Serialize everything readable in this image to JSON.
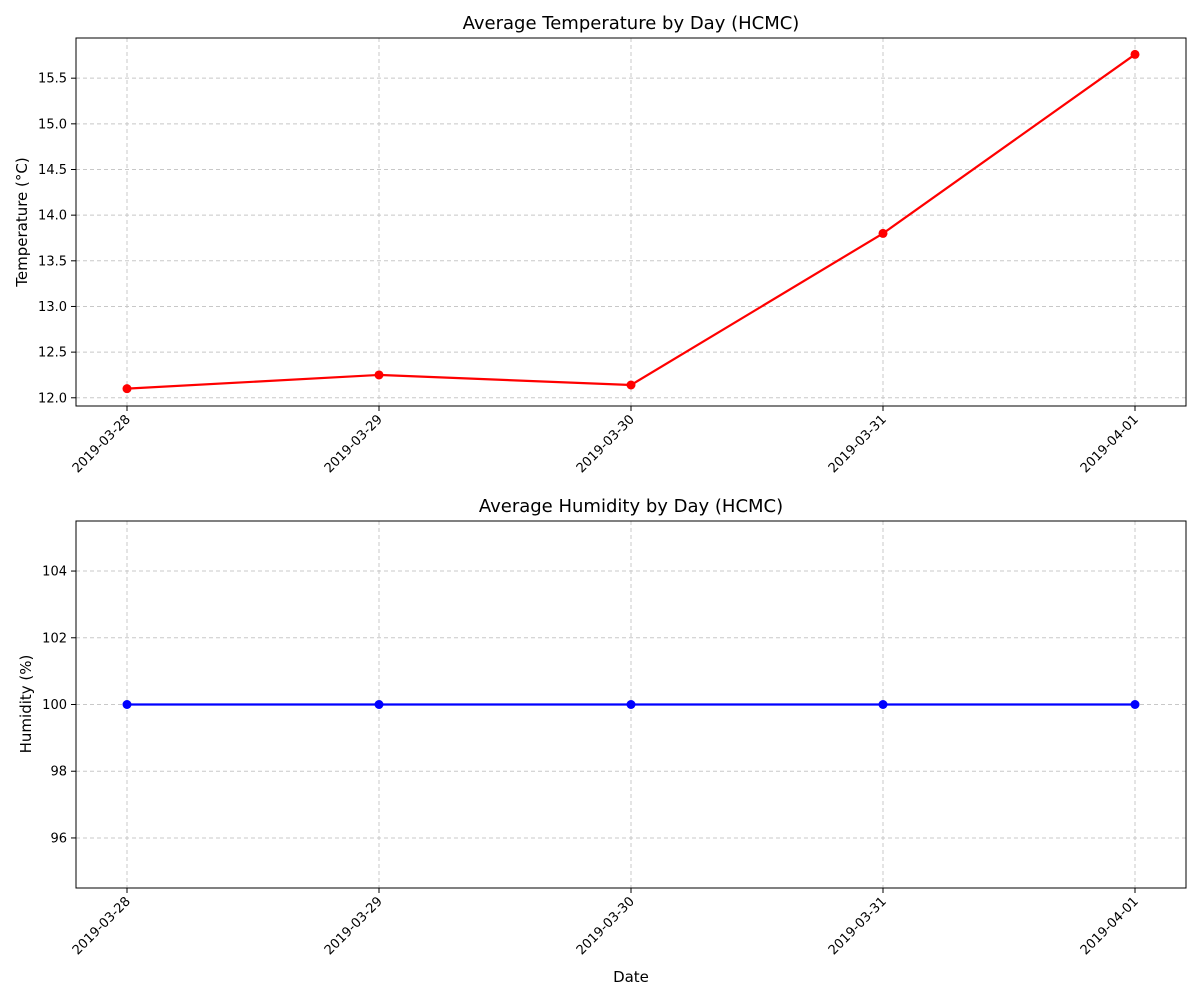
{
  "chart_data": [
    {
      "type": "line",
      "title": "Average Temperature by Day (HCMC)",
      "xlabel": "",
      "ylabel": "Temperature (°C)",
      "categories": [
        "2019-03-28",
        "2019-03-29",
        "2019-03-30",
        "2019-03-31",
        "2019-04-01"
      ],
      "series": [
        {
          "values": [
            12.1,
            12.25,
            12.14,
            13.8,
            15.76
          ],
          "color": "#ff0000"
        }
      ],
      "ylim": [
        11.91,
        15.94
      ],
      "yticks": [
        12.0,
        12.5,
        13.0,
        13.5,
        14.0,
        14.5,
        15.0,
        15.5
      ],
      "ytick_labels": [
        "12.0",
        "12.5",
        "13.0",
        "13.5",
        "14.0",
        "14.5",
        "15.0",
        "15.5"
      ],
      "grid": true,
      "marker": "circle"
    },
    {
      "type": "line",
      "title": "Average Humidity by Day (HCMC)",
      "xlabel": "Date",
      "ylabel": "Humidity (%)",
      "categories": [
        "2019-03-28",
        "2019-03-29",
        "2019-03-30",
        "2019-03-31",
        "2019-04-01"
      ],
      "series": [
        {
          "values": [
            100,
            100,
            100,
            100,
            100
          ],
          "color": "#0000ff"
        }
      ],
      "ylim": [
        94.5,
        105.5
      ],
      "yticks": [
        96,
        98,
        100,
        102,
        104
      ],
      "ytick_labels": [
        "96",
        "98",
        "100",
        "102",
        "104"
      ],
      "grid": true,
      "marker": "circle"
    }
  ]
}
